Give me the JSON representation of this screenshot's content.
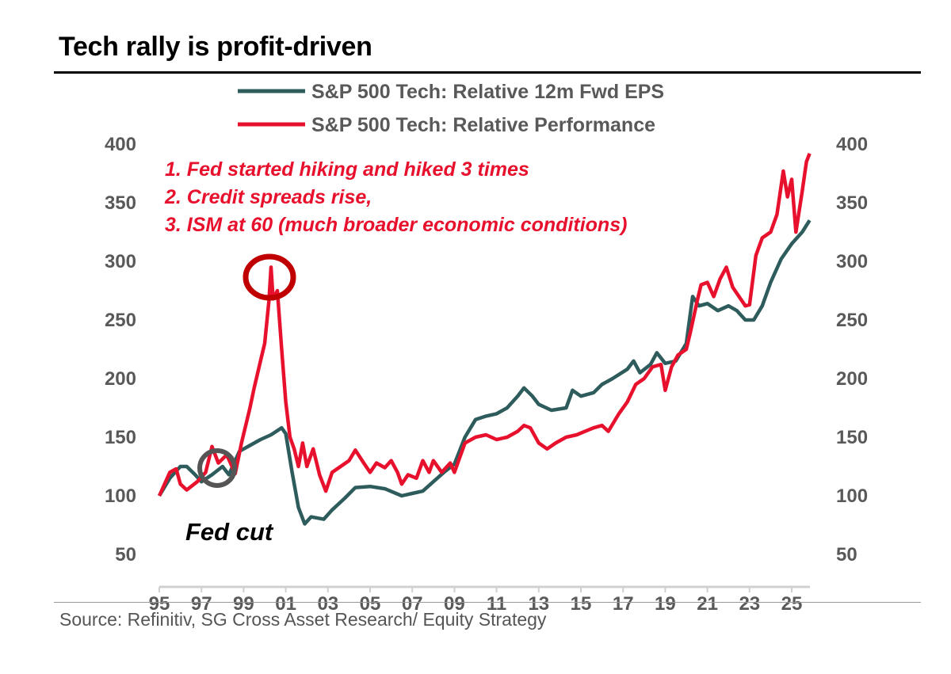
{
  "title": "Tech rally is profit-driven",
  "source": "Source: Refinitiv, SG Cross Asset Research/ Equity Strategy",
  "chart_data": {
    "type": "line",
    "title": "Tech rally is profit-driven",
    "xlabel": "",
    "ylabel": "",
    "xlim": [
      1995,
      2026
    ],
    "ylim": [
      50,
      400
    ],
    "x_ticks": [
      "95",
      "97",
      "99",
      "01",
      "03",
      "05",
      "07",
      "09",
      "11",
      "13",
      "15",
      "17",
      "19",
      "21",
      "23",
      "25"
    ],
    "x_tick_values": [
      1995,
      1997,
      1999,
      2001,
      2003,
      2005,
      2007,
      2009,
      2011,
      2013,
      2015,
      2017,
      2019,
      2021,
      2023,
      2025
    ],
    "y_ticks": [
      50,
      100,
      150,
      200,
      250,
      300,
      350,
      400
    ],
    "y_ticks_right": [
      50,
      100,
      150,
      200,
      250,
      300,
      350,
      400
    ],
    "legend_position": "top-center",
    "grid": false,
    "annotations": {
      "lines": [
        "1. Fed started hiking and hiked 3 times",
        "2. Credit spreads rise,",
        "3.  ISM at 60 (much broader economic conditions)"
      ],
      "fed_cut": "Fed cut",
      "peak_circle": {
        "x": 2000.3,
        "y": 285
      },
      "cut_circle": {
        "x": 1997.8,
        "y": 124
      }
    },
    "series": [
      {
        "name": "S&P 500 Tech: Relative 12m Fwd EPS",
        "color": "#2e5b5b",
        "points": [
          [
            1995.0,
            100
          ],
          [
            1995.5,
            115
          ],
          [
            1996.0,
            125
          ],
          [
            1996.3,
            125
          ],
          [
            1996.7,
            118
          ],
          [
            1997.0,
            112
          ],
          [
            1997.5,
            118
          ],
          [
            1998.0,
            125
          ],
          [
            1998.3,
            118
          ],
          [
            1998.8,
            138
          ],
          [
            1999.3,
            143
          ],
          [
            1999.8,
            148
          ],
          [
            2000.3,
            152
          ],
          [
            2000.8,
            158
          ],
          [
            2001.0,
            153
          ],
          [
            2001.3,
            120
          ],
          [
            2001.6,
            90
          ],
          [
            2001.9,
            76
          ],
          [
            2002.2,
            82
          ],
          [
            2002.8,
            80
          ],
          [
            2003.2,
            88
          ],
          [
            2003.8,
            98
          ],
          [
            2004.3,
            107
          ],
          [
            2005.0,
            108
          ],
          [
            2005.7,
            106
          ],
          [
            2006.5,
            100
          ],
          [
            2007.0,
            102
          ],
          [
            2007.5,
            104
          ],
          [
            2008.0,
            112
          ],
          [
            2008.5,
            120
          ],
          [
            2009.0,
            127
          ],
          [
            2009.5,
            150
          ],
          [
            2010.0,
            165
          ],
          [
            2010.5,
            168
          ],
          [
            2011.0,
            170
          ],
          [
            2011.5,
            175
          ],
          [
            2012.0,
            185
          ],
          [
            2012.3,
            192
          ],
          [
            2012.7,
            185
          ],
          [
            2013.0,
            178
          ],
          [
            2013.6,
            173
          ],
          [
            2014.3,
            175
          ],
          [
            2014.6,
            190
          ],
          [
            2015.0,
            185
          ],
          [
            2015.6,
            188
          ],
          [
            2016.0,
            195
          ],
          [
            2016.5,
            200
          ],
          [
            2017.2,
            208
          ],
          [
            2017.5,
            215
          ],
          [
            2017.8,
            205
          ],
          [
            2018.3,
            212
          ],
          [
            2018.6,
            222
          ],
          [
            2019.0,
            213
          ],
          [
            2019.5,
            215
          ],
          [
            2020.0,
            230
          ],
          [
            2020.3,
            270
          ],
          [
            2020.6,
            262
          ],
          [
            2021.0,
            264
          ],
          [
            2021.5,
            258
          ],
          [
            2022.0,
            262
          ],
          [
            2022.4,
            258
          ],
          [
            2022.8,
            250
          ],
          [
            2023.2,
            250
          ],
          [
            2023.6,
            262
          ],
          [
            2024.0,
            282
          ],
          [
            2024.5,
            302
          ],
          [
            2025.0,
            315
          ],
          [
            2025.5,
            325
          ],
          [
            2025.85,
            335
          ]
        ]
      },
      {
        "name": "S&P 500 Tech: Relative Performance",
        "color": "#e8112d",
        "points": [
          [
            1995.0,
            100
          ],
          [
            1995.5,
            120
          ],
          [
            1995.8,
            123
          ],
          [
            1996.0,
            110
          ],
          [
            1996.3,
            105
          ],
          [
            1996.8,
            112
          ],
          [
            1997.2,
            120
          ],
          [
            1997.5,
            142
          ],
          [
            1997.8,
            128
          ],
          [
            1998.2,
            135
          ],
          [
            1998.6,
            119
          ],
          [
            1998.9,
            145
          ],
          [
            1999.3,
            175
          ],
          [
            1999.5,
            192
          ],
          [
            1999.8,
            215
          ],
          [
            2000.0,
            230
          ],
          [
            2000.2,
            266
          ],
          [
            2000.3,
            295
          ],
          [
            2000.4,
            268
          ],
          [
            2000.6,
            275
          ],
          [
            2000.8,
            226
          ],
          [
            2001.0,
            180
          ],
          [
            2001.2,
            150
          ],
          [
            2001.4,
            140
          ],
          [
            2001.6,
            125
          ],
          [
            2001.8,
            145
          ],
          [
            2002.0,
            125
          ],
          [
            2002.3,
            140
          ],
          [
            2002.6,
            118
          ],
          [
            2002.9,
            104
          ],
          [
            2003.2,
            120
          ],
          [
            2003.6,
            125
          ],
          [
            2004.0,
            130
          ],
          [
            2004.3,
            139
          ],
          [
            2004.7,
            128
          ],
          [
            2005.0,
            120
          ],
          [
            2005.3,
            128
          ],
          [
            2005.7,
            124
          ],
          [
            2006.0,
            130
          ],
          [
            2006.3,
            120
          ],
          [
            2006.5,
            110
          ],
          [
            2006.8,
            118
          ],
          [
            2007.2,
            115
          ],
          [
            2007.5,
            130
          ],
          [
            2007.8,
            120
          ],
          [
            2008.0,
            130
          ],
          [
            2008.4,
            120
          ],
          [
            2008.8,
            128
          ],
          [
            2009.0,
            120
          ],
          [
            2009.5,
            145
          ],
          [
            2010.0,
            150
          ],
          [
            2010.5,
            152
          ],
          [
            2011.0,
            148
          ],
          [
            2011.5,
            150
          ],
          [
            2012.0,
            155
          ],
          [
            2012.3,
            160
          ],
          [
            2012.6,
            158
          ],
          [
            2013.0,
            145
          ],
          [
            2013.4,
            140
          ],
          [
            2013.8,
            145
          ],
          [
            2014.3,
            150
          ],
          [
            2014.8,
            152
          ],
          [
            2015.2,
            155
          ],
          [
            2015.6,
            158
          ],
          [
            2016.0,
            160
          ],
          [
            2016.3,
            155
          ],
          [
            2016.8,
            170
          ],
          [
            2017.2,
            180
          ],
          [
            2017.6,
            195
          ],
          [
            2018.0,
            200
          ],
          [
            2018.4,
            210
          ],
          [
            2018.8,
            212
          ],
          [
            2019.0,
            190
          ],
          [
            2019.3,
            210
          ],
          [
            2019.6,
            220
          ],
          [
            2020.0,
            225
          ],
          [
            2020.2,
            240
          ],
          [
            2020.5,
            265
          ],
          [
            2020.7,
            280
          ],
          [
            2021.0,
            282
          ],
          [
            2021.3,
            270
          ],
          [
            2021.6,
            285
          ],
          [
            2021.9,
            295
          ],
          [
            2022.2,
            278
          ],
          [
            2022.5,
            270
          ],
          [
            2022.8,
            262
          ],
          [
            2023.0,
            263
          ],
          [
            2023.3,
            305
          ],
          [
            2023.6,
            320
          ],
          [
            2024.0,
            325
          ],
          [
            2024.3,
            340
          ],
          [
            2024.6,
            377
          ],
          [
            2024.8,
            355
          ],
          [
            2025.0,
            370
          ],
          [
            2025.2,
            325
          ],
          [
            2025.5,
            360
          ],
          [
            2025.7,
            385
          ],
          [
            2025.85,
            392
          ]
        ]
      }
    ]
  }
}
